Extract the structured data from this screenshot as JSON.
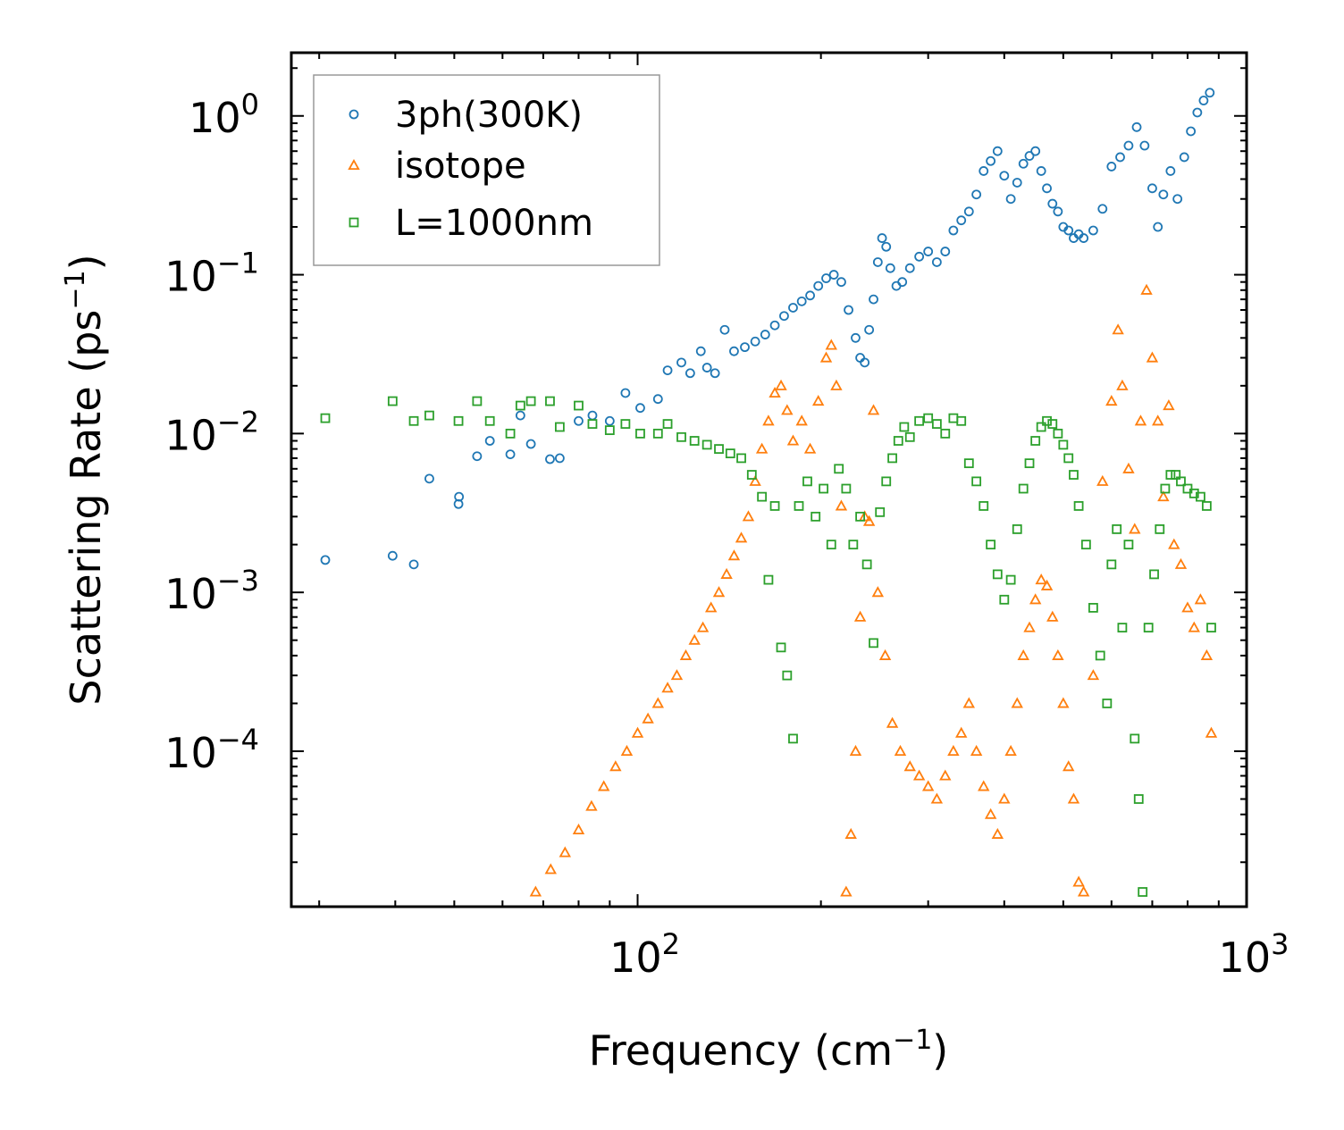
{
  "chart_data": {
    "type": "scatter",
    "xscale": "log",
    "yscale": "log",
    "xlabel": "Frequency (cm",
    "xlabel_sup": "−1",
    "xlabel_tail": ")",
    "ylabel": "Scattering Rate (ps",
    "ylabel_sup": "−1",
    "ylabel_tail": ")",
    "xlim": [
      27,
      1000
    ],
    "ylim": [
      1.05e-05,
      2.5
    ],
    "xticks": [
      {
        "base": "10",
        "exp": "2",
        "value": 100
      },
      {
        "base": "10",
        "exp": "3",
        "value": 1000
      }
    ],
    "yticks": [
      {
        "base": "10",
        "exp": "0",
        "value": 1
      },
      {
        "base": "10",
        "exp": "−1",
        "value": 0.1
      },
      {
        "base": "10",
        "exp": "−2",
        "value": 0.01
      },
      {
        "base": "10",
        "exp": "−3",
        "value": 0.001
      },
      {
        "base": "10",
        "exp": "−4",
        "value": 0.0001
      }
    ],
    "legend_position": "top-left",
    "series": [
      {
        "name": "3ph(300K)",
        "marker": "circle",
        "color": "#1f77b4",
        "points": [
          [
            30.7,
            0.0016
          ],
          [
            39.6,
            0.0017
          ],
          [
            42.9,
            0.0015
          ],
          [
            45.5,
            0.0052
          ],
          [
            50.8,
            0.0036
          ],
          [
            50.9,
            0.004
          ],
          [
            54.5,
            0.0072
          ],
          [
            57.2,
            0.009
          ],
          [
            61.8,
            0.0074
          ],
          [
            64.2,
            0.013
          ],
          [
            66.8,
            0.0086
          ],
          [
            71.8,
            0.0069
          ],
          [
            74.5,
            0.007
          ],
          [
            80,
            0.012
          ],
          [
            84.3,
            0.013
          ],
          [
            90,
            0.012
          ],
          [
            95.5,
            0.018
          ],
          [
            101,
            0.0145
          ],
          [
            108,
            0.0165
          ],
          [
            112,
            0.025
          ],
          [
            118,
            0.028
          ],
          [
            122,
            0.024
          ],
          [
            127,
            0.033
          ],
          [
            130,
            0.026
          ],
          [
            134,
            0.024
          ],
          [
            139,
            0.045
          ],
          [
            144,
            0.033
          ],
          [
            150,
            0.035
          ],
          [
            156,
            0.038
          ],
          [
            162,
            0.042
          ],
          [
            168,
            0.048
          ],
          [
            174,
            0.055
          ],
          [
            180,
            0.062
          ],
          [
            186,
            0.068
          ],
          [
            192,
            0.074
          ],
          [
            198,
            0.085
          ],
          [
            204,
            0.095
          ],
          [
            210,
            0.1
          ],
          [
            216,
            0.09
          ],
          [
            222,
            0.06
          ],
          [
            228,
            0.04
          ],
          [
            232,
            0.03
          ],
          [
            236,
            0.028
          ],
          [
            240,
            0.045
          ],
          [
            244,
            0.07
          ],
          [
            248,
            0.12
          ],
          [
            252,
            0.17
          ],
          [
            256,
            0.15
          ],
          [
            260,
            0.11
          ],
          [
            266,
            0.085
          ],
          [
            272,
            0.09
          ],
          [
            280,
            0.11
          ],
          [
            290,
            0.13
          ],
          [
            300,
            0.14
          ],
          [
            310,
            0.12
          ],
          [
            320,
            0.14
          ],
          [
            330,
            0.19
          ],
          [
            340,
            0.22
          ],
          [
            350,
            0.25
          ],
          [
            360,
            0.32
          ],
          [
            370,
            0.45
          ],
          [
            380,
            0.52
          ],
          [
            390,
            0.6
          ],
          [
            400,
            0.42
          ],
          [
            410,
            0.3
          ],
          [
            420,
            0.38
          ],
          [
            430,
            0.5
          ],
          [
            440,
            0.56
          ],
          [
            450,
            0.6
          ],
          [
            460,
            0.45
          ],
          [
            470,
            0.35
          ],
          [
            480,
            0.28
          ],
          [
            490,
            0.25
          ],
          [
            500,
            0.2
          ],
          [
            510,
            0.19
          ],
          [
            520,
            0.17
          ],
          [
            530,
            0.18
          ],
          [
            540,
            0.17
          ],
          [
            560,
            0.19
          ],
          [
            580,
            0.26
          ],
          [
            600,
            0.48
          ],
          [
            620,
            0.55
          ],
          [
            640,
            0.65
          ],
          [
            660,
            0.85
          ],
          [
            680,
            0.65
          ],
          [
            700,
            0.35
          ],
          [
            715,
            0.2
          ],
          [
            730,
            0.32
          ],
          [
            750,
            0.45
          ],
          [
            770,
            0.3
          ],
          [
            790,
            0.55
          ],
          [
            810,
            0.8
          ],
          [
            830,
            1.05
          ],
          [
            850,
            1.25
          ],
          [
            870,
            1.4
          ]
        ]
      },
      {
        "name": "isotope",
        "marker": "triangle",
        "color": "#ff7f0e",
        "points": [
          [
            68,
            1.3e-05
          ],
          [
            72,
            1.8e-05
          ],
          [
            76,
            2.3e-05
          ],
          [
            80,
            3.2e-05
          ],
          [
            84,
            4.5e-05
          ],
          [
            88,
            6e-05
          ],
          [
            92,
            8e-05
          ],
          [
            96,
            0.0001
          ],
          [
            100,
            0.00013
          ],
          [
            104,
            0.00016
          ],
          [
            108,
            0.0002
          ],
          [
            112,
            0.00025
          ],
          [
            116,
            0.0003
          ],
          [
            120,
            0.0004
          ],
          [
            124,
            0.0005
          ],
          [
            128,
            0.0006
          ],
          [
            132,
            0.0008
          ],
          [
            136,
            0.001
          ],
          [
            140,
            0.0013
          ],
          [
            144,
            0.0017
          ],
          [
            148,
            0.0022
          ],
          [
            152,
            0.003
          ],
          [
            156,
            0.005
          ],
          [
            160,
            0.008
          ],
          [
            164,
            0.012
          ],
          [
            168,
            0.018
          ],
          [
            172,
            0.02
          ],
          [
            176,
            0.014
          ],
          [
            180,
            0.009
          ],
          [
            186,
            0.012
          ],
          [
            192,
            0.008
          ],
          [
            198,
            0.016
          ],
          [
            204,
            0.03
          ],
          [
            208,
            0.036
          ],
          [
            212,
            0.02
          ],
          [
            216,
            0.0035
          ],
          [
            220,
            1.3e-05
          ],
          [
            224,
            3e-05
          ],
          [
            228,
            0.0001
          ],
          [
            232,
            0.0007
          ],
          [
            236,
            0.003
          ],
          [
            240,
            0.0028
          ],
          [
            244,
            0.014
          ],
          [
            248,
            0.001
          ],
          [
            255,
            0.0004
          ],
          [
            262,
            0.00015
          ],
          [
            270,
            0.0001
          ],
          [
            280,
            8e-05
          ],
          [
            290,
            7e-05
          ],
          [
            300,
            6e-05
          ],
          [
            310,
            5e-05
          ],
          [
            320,
            7e-05
          ],
          [
            330,
            0.0001
          ],
          [
            340,
            0.00013
          ],
          [
            350,
            0.0002
          ],
          [
            360,
            0.0001
          ],
          [
            370,
            6e-05
          ],
          [
            380,
            4e-05
          ],
          [
            390,
            3e-05
          ],
          [
            400,
            5e-05
          ],
          [
            410,
            0.0001
          ],
          [
            420,
            0.0002
          ],
          [
            430,
            0.0004
          ],
          [
            440,
            0.0006
          ],
          [
            450,
            0.0009
          ],
          [
            460,
            0.0012
          ],
          [
            470,
            0.0011
          ],
          [
            480,
            0.0007
          ],
          [
            490,
            0.0004
          ],
          [
            500,
            0.0002
          ],
          [
            510,
            8e-05
          ],
          [
            520,
            5e-05
          ],
          [
            530,
            1.5e-05
          ],
          [
            540,
            1.3e-05
          ],
          [
            560,
            0.0003
          ],
          [
            580,
            0.005
          ],
          [
            600,
            0.016
          ],
          [
            615,
            0.045
          ],
          [
            625,
            0.02
          ],
          [
            640,
            0.006
          ],
          [
            655,
            0.0025
          ],
          [
            670,
            0.012
          ],
          [
            685,
            0.08
          ],
          [
            700,
            0.03
          ],
          [
            715,
            0.012
          ],
          [
            730,
            0.004
          ],
          [
            745,
            0.015
          ],
          [
            760,
            0.002
          ],
          [
            780,
            0.0015
          ],
          [
            800,
            0.0008
          ],
          [
            820,
            0.0006
          ],
          [
            840,
            0.0009
          ],
          [
            860,
            0.0004
          ],
          [
            875,
            0.00013
          ]
        ]
      },
      {
        "name": "L=1000nm",
        "marker": "square",
        "color": "#2ca02c",
        "points": [
          [
            30.7,
            0.0125
          ],
          [
            39.6,
            0.016
          ],
          [
            42.9,
            0.012
          ],
          [
            45.5,
            0.013
          ],
          [
            50.8,
            0.012
          ],
          [
            54.5,
            0.016
          ],
          [
            57.2,
            0.012
          ],
          [
            61.8,
            0.01
          ],
          [
            64.2,
            0.015
          ],
          [
            66.8,
            0.016
          ],
          [
            71.8,
            0.016
          ],
          [
            74.5,
            0.011
          ],
          [
            80,
            0.015
          ],
          [
            84.3,
            0.0115
          ],
          [
            90,
            0.0105
          ],
          [
            95.5,
            0.0115
          ],
          [
            101,
            0.01
          ],
          [
            108,
            0.01
          ],
          [
            112,
            0.0115
          ],
          [
            118,
            0.0095
          ],
          [
            124,
            0.009
          ],
          [
            130,
            0.0085
          ],
          [
            136,
            0.008
          ],
          [
            142,
            0.0075
          ],
          [
            148,
            0.007
          ],
          [
            154,
            0.0055
          ],
          [
            160,
            0.004
          ],
          [
            164,
            0.0012
          ],
          [
            168,
            0.0035
          ],
          [
            172,
            0.00045
          ],
          [
            176,
            0.0003
          ],
          [
            180,
            0.00012
          ],
          [
            184,
            0.0035
          ],
          [
            190,
            0.005
          ],
          [
            196,
            0.003
          ],
          [
            202,
            0.0045
          ],
          [
            208,
            0.002
          ],
          [
            214,
            0.006
          ],
          [
            220,
            0.0045
          ],
          [
            226,
            0.002
          ],
          [
            232,
            0.003
          ],
          [
            238,
            0.0015
          ],
          [
            244,
            0.00048
          ],
          [
            250,
            0.0032
          ],
          [
            256,
            0.005
          ],
          [
            262,
            0.007
          ],
          [
            268,
            0.009
          ],
          [
            274,
            0.011
          ],
          [
            280,
            0.0095
          ],
          [
            290,
            0.012
          ],
          [
            300,
            0.0125
          ],
          [
            310,
            0.0115
          ],
          [
            320,
            0.01
          ],
          [
            330,
            0.0125
          ],
          [
            340,
            0.012
          ],
          [
            350,
            0.0065
          ],
          [
            360,
            0.005
          ],
          [
            370,
            0.0035
          ],
          [
            380,
            0.002
          ],
          [
            390,
            0.0013
          ],
          [
            400,
            0.0009
          ],
          [
            410,
            0.0012
          ],
          [
            420,
            0.0025
          ],
          [
            430,
            0.0045
          ],
          [
            440,
            0.0065
          ],
          [
            450,
            0.009
          ],
          [
            460,
            0.011
          ],
          [
            470,
            0.012
          ],
          [
            480,
            0.0115
          ],
          [
            490,
            0.01
          ],
          [
            500,
            0.0085
          ],
          [
            510,
            0.007
          ],
          [
            520,
            0.0055
          ],
          [
            530,
            0.0035
          ],
          [
            545,
            0.002
          ],
          [
            560,
            0.0008
          ],
          [
            575,
            0.0004
          ],
          [
            590,
            0.0002
          ],
          [
            600,
            0.0015
          ],
          [
            612,
            0.0025
          ],
          [
            625,
            0.0006
          ],
          [
            640,
            0.002
          ],
          [
            655,
            0.00012
          ],
          [
            665,
            5e-05
          ],
          [
            675,
            1.3e-05
          ],
          [
            690,
            0.0006
          ],
          [
            705,
            0.0013
          ],
          [
            720,
            0.0025
          ],
          [
            735,
            0.0045
          ],
          [
            750,
            0.0055
          ],
          [
            765,
            0.0055
          ],
          [
            780,
            0.005
          ],
          [
            800,
            0.0045
          ],
          [
            820,
            0.0042
          ],
          [
            840,
            0.004
          ],
          [
            860,
            0.0035
          ],
          [
            875,
            0.0006
          ]
        ]
      }
    ]
  }
}
